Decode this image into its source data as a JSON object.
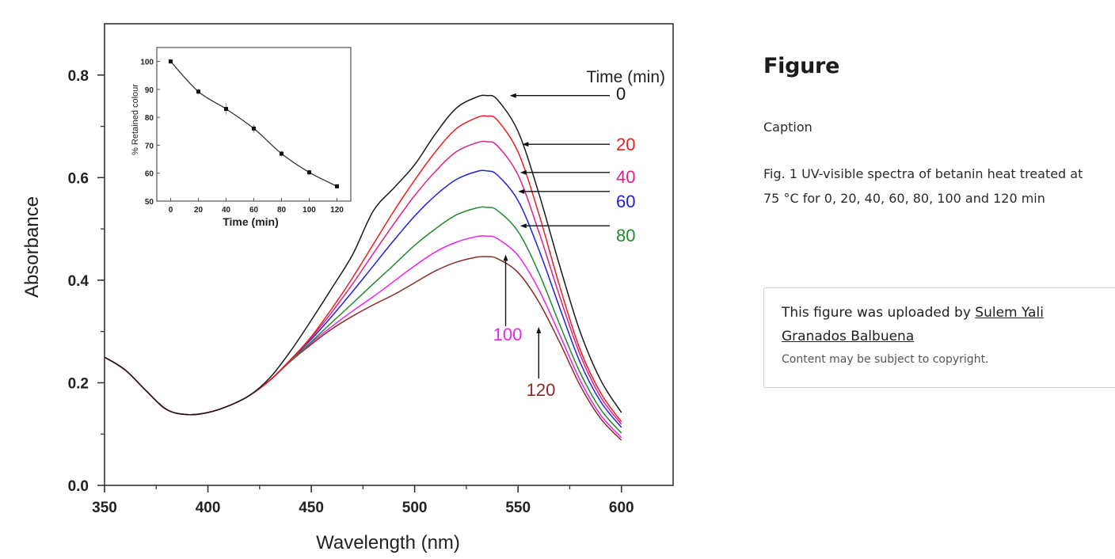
{
  "chart_data": {
    "type": "line",
    "title": "",
    "xlabel": "Wavelength (nm)",
    "ylabel": "Absorbance",
    "xlim": [
      350,
      625
    ],
    "ylim": [
      0.0,
      0.9
    ],
    "x_ticks": [
      "350",
      "400",
      "450",
      "500",
      "550",
      "600"
    ],
    "x_tick_values": [
      350,
      400,
      450,
      500,
      550,
      600
    ],
    "y_ticks": [
      "0.0",
      "0.2",
      "0.4",
      "0.6",
      "0.8"
    ],
    "y_tick_values": [
      0.0,
      0.2,
      0.4,
      0.6,
      0.8
    ],
    "grid": false,
    "legend_title": "Time (min)",
    "x": [
      350,
      360,
      370,
      380,
      390,
      400,
      410,
      420,
      430,
      440,
      450,
      460,
      470,
      480,
      490,
      500,
      510,
      520,
      530,
      535,
      540,
      550,
      560,
      570,
      580,
      590,
      600
    ],
    "series": [
      {
        "name": "0",
        "color": "#1a1a1a",
        "values": [
          0.25,
          0.225,
          0.185,
          0.148,
          0.138,
          0.142,
          0.155,
          0.175,
          0.21,
          0.262,
          0.322,
          0.385,
          0.45,
          0.535,
          0.58,
          0.625,
          0.685,
          0.735,
          0.757,
          0.76,
          0.752,
          0.69,
          0.57,
          0.43,
          0.3,
          0.205,
          0.142
        ]
      },
      {
        "name": "20",
        "color": "#e8201e",
        "values": [
          0.25,
          0.225,
          0.185,
          0.148,
          0.138,
          0.142,
          0.155,
          0.175,
          0.205,
          0.245,
          0.29,
          0.345,
          0.405,
          0.47,
          0.535,
          0.595,
          0.65,
          0.695,
          0.717,
          0.72,
          0.712,
          0.65,
          0.53,
          0.39,
          0.265,
          0.18,
          0.124
        ]
      },
      {
        "name": "40",
        "color": "#e0208a",
        "values": [
          0.25,
          0.225,
          0.185,
          0.148,
          0.138,
          0.142,
          0.155,
          0.175,
          0.205,
          0.245,
          0.288,
          0.338,
          0.393,
          0.452,
          0.51,
          0.565,
          0.612,
          0.65,
          0.668,
          0.67,
          0.662,
          0.605,
          0.495,
          0.37,
          0.255,
          0.172,
          0.119
        ]
      },
      {
        "name": "60",
        "color": "#2020e0",
        "values": [
          0.25,
          0.225,
          0.185,
          0.148,
          0.138,
          0.142,
          0.155,
          0.175,
          0.205,
          0.245,
          0.285,
          0.33,
          0.378,
          0.428,
          0.478,
          0.525,
          0.565,
          0.596,
          0.612,
          0.613,
          0.605,
          0.555,
          0.46,
          0.348,
          0.24,
          0.163,
          0.113
        ]
      },
      {
        "name": "80",
        "color": "#208a30",
        "values": [
          0.25,
          0.225,
          0.185,
          0.148,
          0.138,
          0.142,
          0.155,
          0.175,
          0.205,
          0.243,
          0.28,
          0.318,
          0.355,
          0.393,
          0.43,
          0.468,
          0.5,
          0.527,
          0.541,
          0.542,
          0.536,
          0.495,
          0.415,
          0.315,
          0.22,
          0.148,
          0.102
        ]
      },
      {
        "name": "100",
        "color": "#ee22ee",
        "values": [
          0.25,
          0.225,
          0.185,
          0.148,
          0.138,
          0.142,
          0.155,
          0.175,
          0.205,
          0.243,
          0.278,
          0.31,
          0.34,
          0.368,
          0.398,
          0.428,
          0.455,
          0.474,
          0.485,
          0.486,
          0.481,
          0.448,
          0.382,
          0.295,
          0.205,
          0.137,
          0.093
        ]
      },
      {
        "name": "120",
        "color": "#8a2a2a",
        "values": [
          0.25,
          0.225,
          0.185,
          0.148,
          0.138,
          0.142,
          0.155,
          0.175,
          0.205,
          0.242,
          0.275,
          0.305,
          0.33,
          0.352,
          0.372,
          0.395,
          0.418,
          0.435,
          0.445,
          0.446,
          0.442,
          0.415,
          0.358,
          0.28,
          0.195,
          0.13,
          0.088
        ]
      }
    ],
    "annotations": [
      {
        "label": "0",
        "color": "#1a1a1a",
        "arrow": "left",
        "target_x": 546,
        "target_y": 0.76
      },
      {
        "label": "20",
        "color": "#e8201e",
        "arrow": "left",
        "target_x": 552,
        "target_y": 0.665
      },
      {
        "label": "40",
        "color": "#e0208a",
        "arrow": "left",
        "target_x": 551,
        "target_y": 0.61
      },
      {
        "label": "60",
        "color": "#2020e0",
        "arrow": "left",
        "target_x": 550,
        "target_y": 0.573
      },
      {
        "label": "80",
        "color": "#208a30",
        "arrow": "left",
        "target_x": 551,
        "target_y": 0.506
      },
      {
        "label": "100",
        "color": "#ee22ee",
        "arrow": "up",
        "target_x": 544,
        "target_y": 0.45
      },
      {
        "label": "120",
        "color": "#8a2a2a",
        "arrow": "up",
        "target_x": 560,
        "target_y": 0.309
      }
    ],
    "inset": {
      "type": "line",
      "xlabel": "Time (min)",
      "ylabel": "% Retained colour",
      "xlim": [
        -10,
        130
      ],
      "ylim": [
        50,
        105
      ],
      "x_ticks": [
        "0",
        "20",
        "40",
        "60",
        "80",
        "100",
        "120"
      ],
      "x_tick_values": [
        0,
        20,
        40,
        60,
        80,
        100,
        120
      ],
      "y_ticks": [
        "50",
        "60",
        "70",
        "80",
        "90",
        "100"
      ],
      "y_tick_values": [
        50,
        60,
        70,
        80,
        90,
        100
      ],
      "x": [
        0,
        20,
        40,
        60,
        80,
        100,
        120
      ],
      "values": [
        100,
        89.2,
        83.0,
        76.0,
        67.0,
        60.3,
        55.3
      ],
      "errors": [
        0.5,
        1.0,
        2.0,
        1.5,
        1.0,
        1.0,
        0.8
      ],
      "color": "#1a1a1a"
    }
  },
  "panel": {
    "title": "Figure",
    "caption_label": "Caption",
    "caption_text": "Fig. 1 UV-visible spectra of betanin heat treated at 75 °C for 0, 20, 40, 60, 80, 100 and 120 min",
    "uploaded_prefix": "This figure was uploaded by ",
    "uploader_name": "Sulem Yali Granados Balbuena",
    "copyright_note": "Content may be subject to copyright."
  }
}
